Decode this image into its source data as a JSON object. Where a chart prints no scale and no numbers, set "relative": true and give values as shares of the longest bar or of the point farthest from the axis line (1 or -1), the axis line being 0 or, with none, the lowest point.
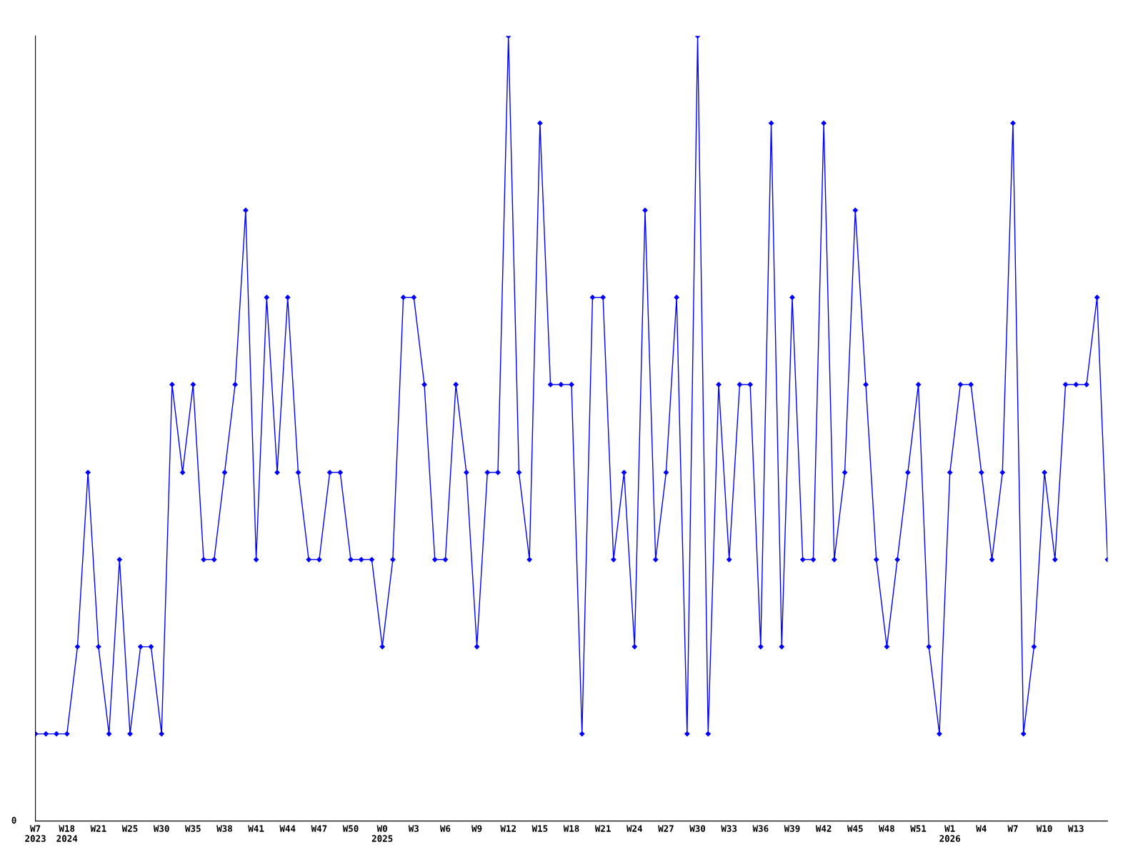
{
  "chart_data": {
    "type": "line",
    "relative": true,
    "marker": "diamond",
    "line_style": "solid",
    "grid": false,
    "legend": false,
    "annotations": [
      "0"
    ],
    "categories": [
      "W7\n2023",
      null,
      null,
      "W18\n2024",
      null,
      null,
      "W21",
      null,
      null,
      "W25",
      null,
      null,
      "W30",
      null,
      null,
      "W35",
      null,
      null,
      "W38",
      null,
      null,
      "W41",
      null,
      null,
      "W44",
      null,
      null,
      "W47",
      null,
      null,
      "W50",
      null,
      null,
      "W0\n2025",
      null,
      null,
      "W3",
      null,
      null,
      "W6",
      null,
      null,
      "W9",
      null,
      null,
      "W12",
      null,
      null,
      "W15",
      null,
      null,
      "W18",
      null,
      null,
      "W21",
      null,
      null,
      "W24",
      null,
      null,
      "W27",
      null,
      null,
      "W30",
      null,
      null,
      "W33",
      null,
      null,
      "W36",
      null,
      null,
      "W39",
      null,
      null,
      "W42",
      null,
      null,
      "W45",
      null,
      null,
      "W48",
      null,
      null,
      "W51",
      null,
      null,
      "W1\n2026",
      null,
      null,
      "W4",
      null,
      null,
      "W7",
      null,
      null,
      "W10",
      null,
      null,
      "W13",
      null,
      null,
      null
    ],
    "series": [
      {
        "color": "#0000ff",
        "values": [
          0.111,
          0.111,
          0.111,
          0.111,
          0.222,
          0.444,
          0.222,
          0.111,
          0.333,
          0.111,
          0.222,
          0.222,
          0.111,
          0.556,
          0.444,
          0.556,
          0.333,
          0.333,
          0.444,
          0.556,
          0.778,
          0.333,
          0.667,
          0.444,
          0.667,
          0.444,
          0.333,
          0.333,
          0.444,
          0.444,
          0.333,
          0.333,
          0.333,
          0.222,
          0.333,
          0.667,
          0.667,
          0.556,
          0.333,
          0.333,
          0.556,
          0.444,
          0.222,
          0.444,
          0.444,
          1,
          0.444,
          0.333,
          0.889,
          0.556,
          0.556,
          0.556,
          0.111,
          0.667,
          0.667,
          0.333,
          0.444,
          0.222,
          0.778,
          0.333,
          0.444,
          0.667,
          0.111,
          1,
          0.111,
          0.556,
          0.333,
          0.556,
          0.556,
          0.222,
          0.889,
          0.222,
          0.667,
          0.333,
          0.333,
          0.889,
          0.333,
          0.444,
          0.778,
          0.556,
          0.333,
          0.222,
          0.333,
          0.444,
          0.556,
          0.222,
          0.111,
          0.444,
          0.556,
          0.556,
          0.444,
          0.333,
          0.444,
          0.889,
          0.111,
          0.222,
          0.444,
          0.333,
          0.556,
          0.556,
          0.556,
          0.667,
          0.333
        ]
      }
    ]
  }
}
